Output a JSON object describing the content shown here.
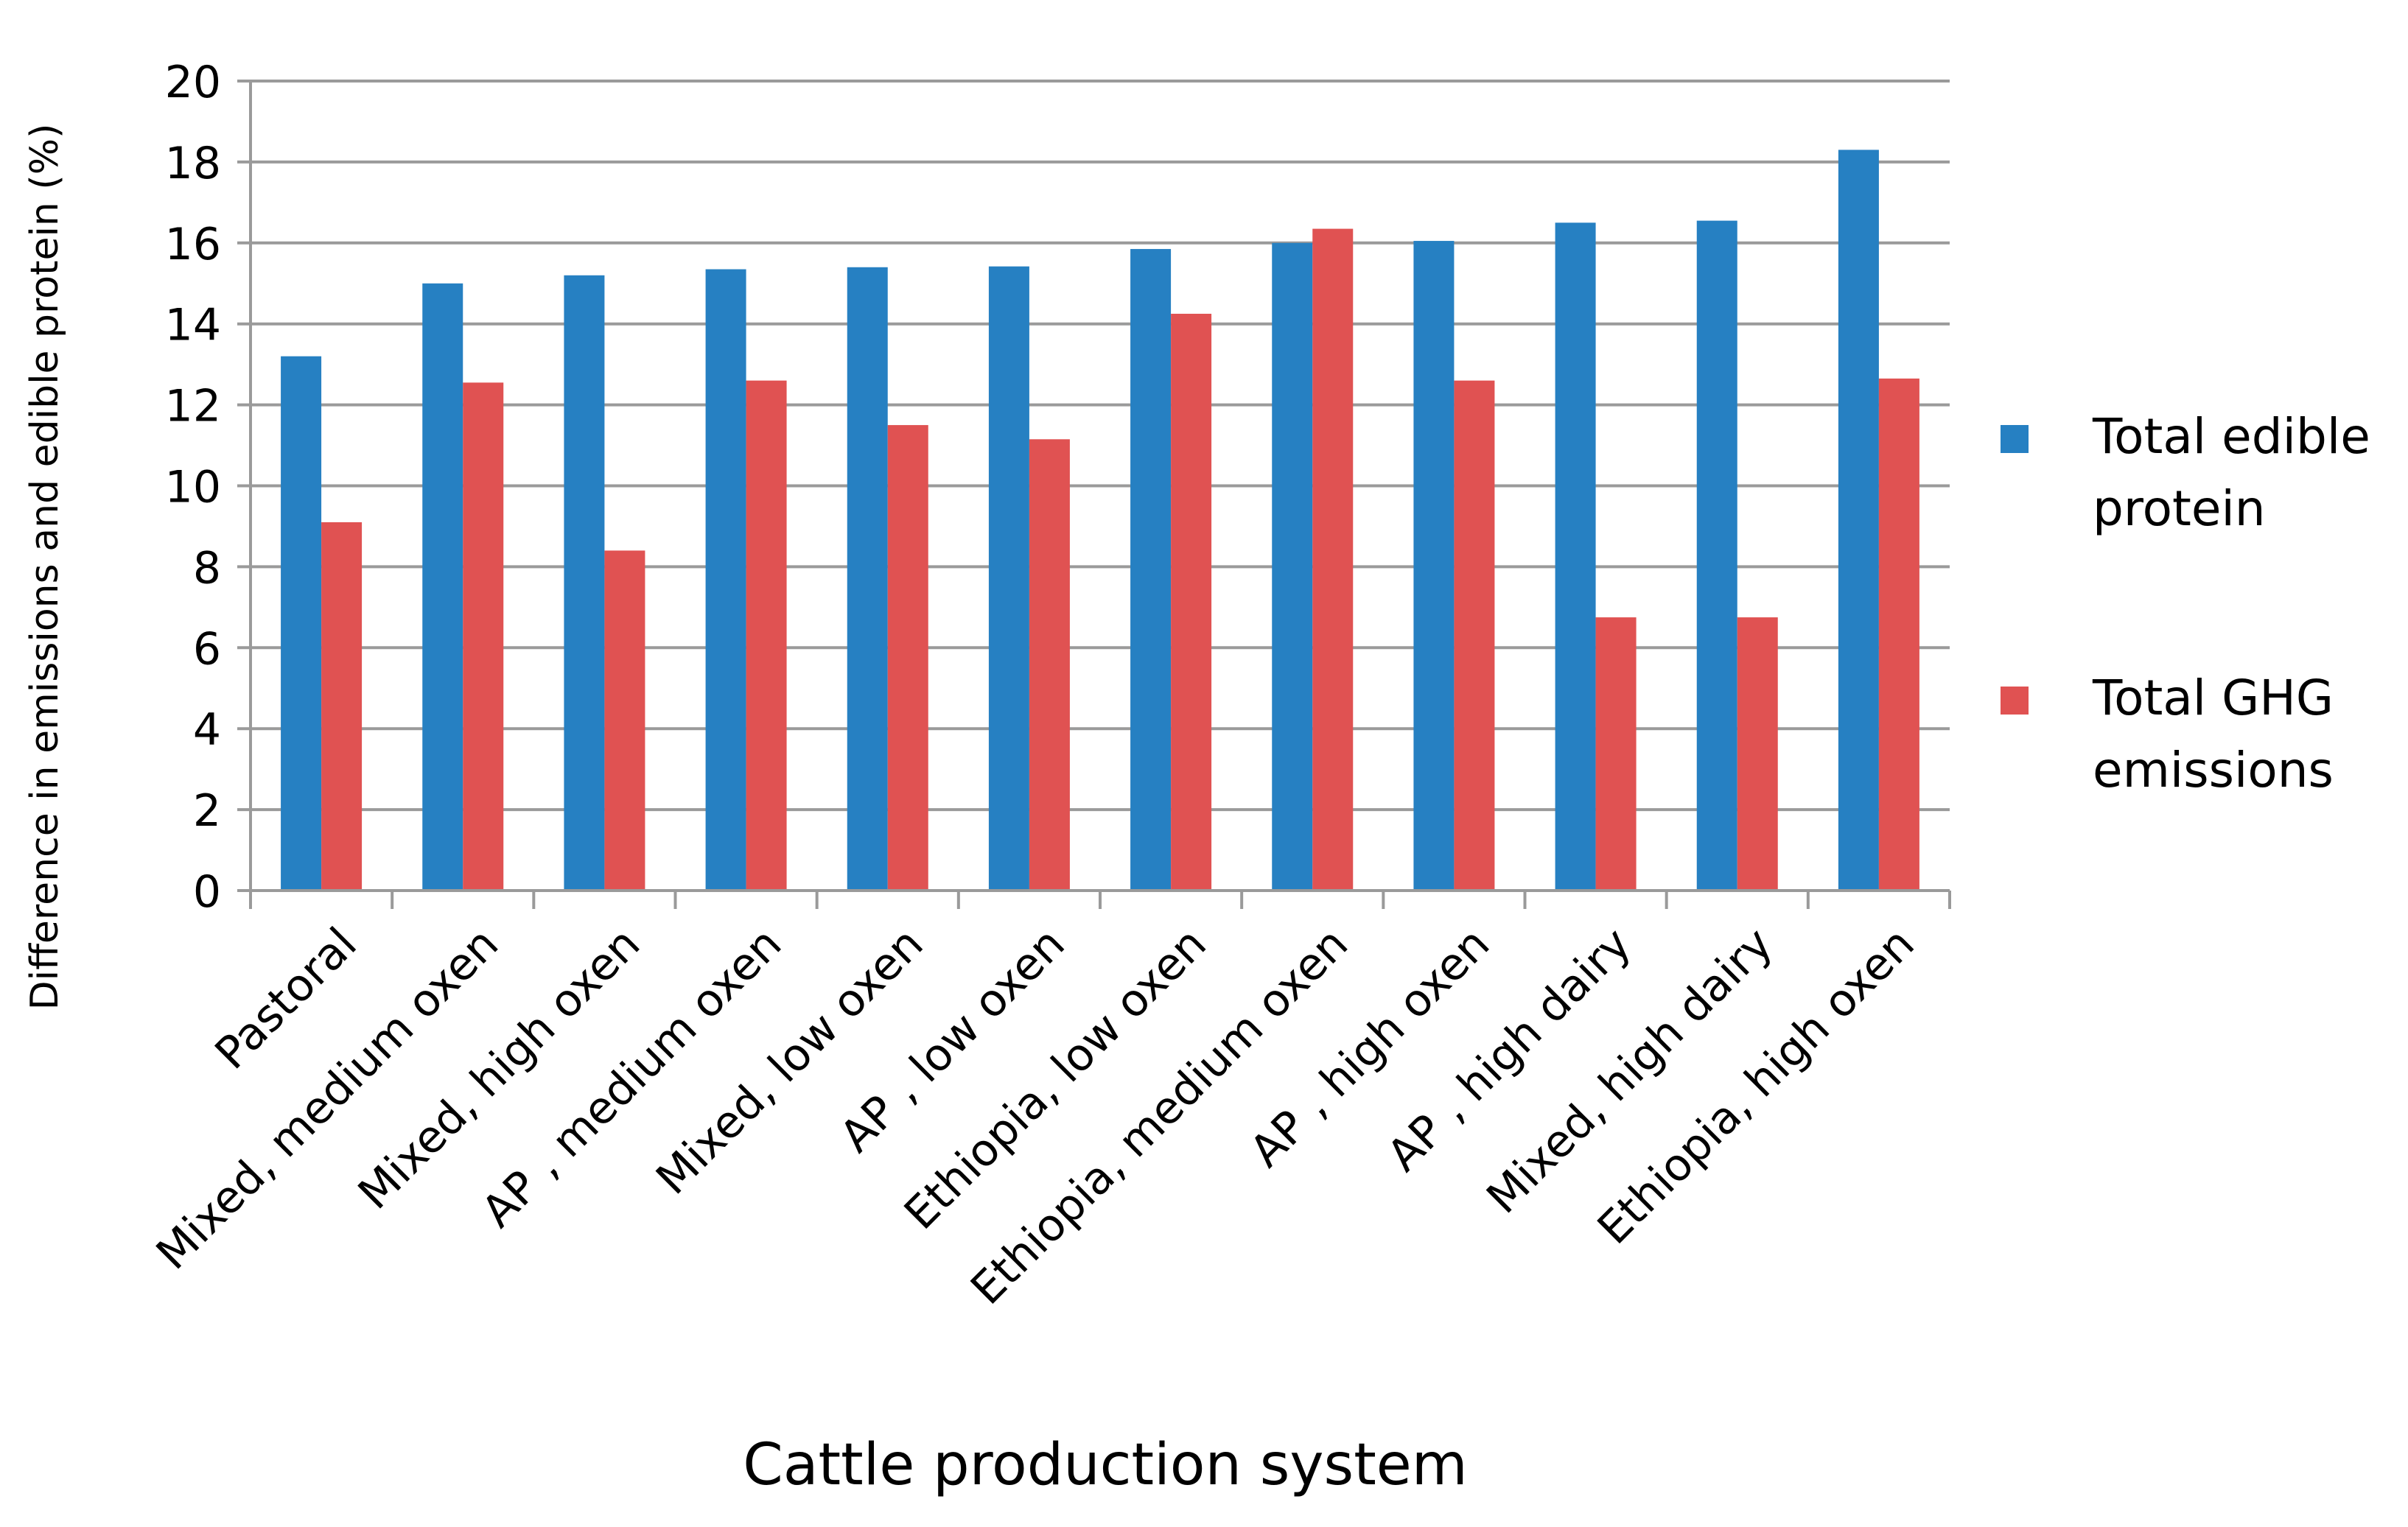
{
  "chart_data": {
    "type": "bar",
    "title": "",
    "xlabel": "Cattle production system",
    "ylabel": "Difference in emissions and edible protein (%)",
    "ylim": [
      0,
      20
    ],
    "yticks": [
      0,
      2,
      4,
      6,
      8,
      10,
      12,
      14,
      16,
      18,
      20
    ],
    "grid": true,
    "legend_position": "right",
    "categories": [
      "Pastoral",
      "Mixed, medium oxen",
      "Mixed, high oxen",
      "AP , medium oxen",
      "Mixed, low oxen",
      "AP , low oxen",
      "Ethiopia, low oxen",
      "Ethiopia, medium oxen",
      "AP , high oxen",
      "AP , high dairy",
      "Mixed, high dairy",
      "Ethiopia, high oxen"
    ],
    "series": [
      {
        "name": "Total edible protein",
        "legend_lines": [
          "Total edible",
          "protein"
        ],
        "color": "#2680C2",
        "values": [
          13.2,
          15.0,
          15.2,
          15.35,
          15.4,
          15.42,
          15.85,
          16.0,
          16.05,
          16.5,
          16.55,
          18.3
        ]
      },
      {
        "name": "Total GHG emissions",
        "legend_lines": [
          "Total GHG",
          "emissions"
        ],
        "color": "#E05252",
        "values": [
          9.1,
          12.55,
          8.4,
          12.6,
          11.5,
          11.15,
          14.25,
          16.35,
          12.6,
          6.75,
          6.75,
          12.65
        ]
      }
    ],
    "gridline_color": "#9A9A9A"
  }
}
